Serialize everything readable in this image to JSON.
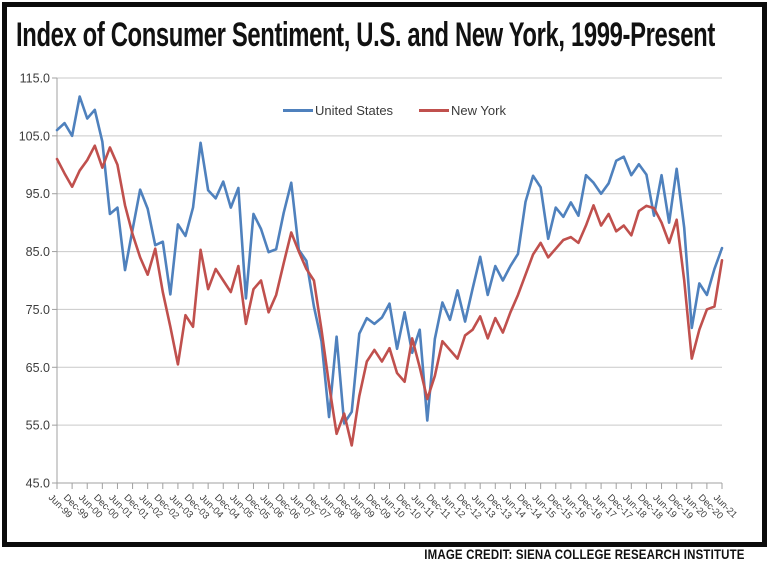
{
  "frame": {
    "title": "Index of Consumer Sentiment, U.S. and New York, 1999-Present",
    "credit": "IMAGE CREDIT: SIENA COLLEGE RESEARCH INSTITUTE"
  },
  "chart_data": {
    "type": "line",
    "title": "Index of Consumer Sentiment, U.S. and New York, 1999-Present",
    "xlabel": "",
    "ylabel": "",
    "ylim": [
      45,
      115
    ],
    "grid": "horizontal",
    "legend_position": "top-center",
    "y_tick_labels": [
      "115.0",
      "105.0",
      "95.0",
      "85.0",
      "75.0",
      "65.0",
      "55.0",
      "45.0"
    ],
    "x_tick_labels": [
      "Jun-99",
      "Dec-99",
      "Jun-00",
      "Dec-00",
      "Jun-01",
      "Dec-01",
      "Jun-02",
      "Dec-02",
      "Jun-03",
      "Dec-03",
      "Jun-04",
      "Dec-04",
      "Jun-05",
      "Dec-05",
      "Jun-06",
      "Dec-06",
      "Jun-07",
      "Dec-07",
      "Jun-08",
      "Dec-08",
      "Jun-09",
      "Dec-09",
      "Jun-10",
      "Dec-10",
      "Jun-11",
      "Dec-11",
      "Jun-12",
      "Dec-12",
      "Jun-13",
      "Dec-13",
      "Jun-14",
      "Dec-14",
      "Jun-15",
      "Dec-15",
      "Jun-16",
      "Dec-16",
      "Jun-17",
      "Dec-17",
      "Jun-18",
      "Dec-18",
      "Jun-19",
      "Dec-19",
      "Jun-20",
      "Dec-20",
      "Jun-21"
    ],
    "categories": [
      "Jun-99",
      "Sep-99",
      "Dec-99",
      "Mar-00",
      "Jun-00",
      "Sep-00",
      "Dec-00",
      "Mar-01",
      "Jun-01",
      "Sep-01",
      "Dec-01",
      "Mar-02",
      "Jun-02",
      "Sep-02",
      "Dec-02",
      "Mar-03",
      "Jun-03",
      "Sep-03",
      "Dec-03",
      "Mar-04",
      "Jun-04",
      "Sep-04",
      "Dec-04",
      "Mar-05",
      "Jun-05",
      "Sep-05",
      "Dec-05",
      "Mar-06",
      "Jun-06",
      "Sep-06",
      "Dec-06",
      "Mar-07",
      "Jun-07",
      "Sep-07",
      "Dec-07",
      "Mar-08",
      "Jun-08",
      "Sep-08",
      "Dec-08",
      "Mar-09",
      "Jun-09",
      "Sep-09",
      "Dec-09",
      "Mar-10",
      "Jun-10",
      "Sep-10",
      "Dec-10",
      "Mar-11",
      "Jun-11",
      "Sep-11",
      "Dec-11",
      "Mar-12",
      "Jun-12",
      "Sep-12",
      "Dec-12",
      "Mar-13",
      "Jun-13",
      "Sep-13",
      "Dec-13",
      "Mar-14",
      "Jun-14",
      "Sep-14",
      "Dec-14",
      "Mar-15",
      "Jun-15",
      "Sep-15",
      "Dec-15",
      "Mar-16",
      "Jun-16",
      "Sep-16",
      "Dec-16",
      "Mar-17",
      "Jun-17",
      "Sep-17",
      "Dec-17",
      "Mar-18",
      "Jun-18",
      "Sep-18",
      "Dec-18",
      "Mar-19",
      "Jun-19",
      "Sep-19",
      "Dec-19",
      "Mar-20",
      "Jun-20",
      "Sep-20",
      "Dec-20",
      "Mar-21",
      "Jun-21"
    ],
    "series": [
      {
        "name": "United States",
        "color": "#4f81bd",
        "values": [
          106.0,
          107.2,
          105.0,
          111.8,
          108.0,
          109.5,
          104.0,
          91.5,
          92.6,
          81.8,
          88.8,
          95.7,
          92.4,
          86.1,
          86.7,
          77.6,
          89.7,
          87.7,
          92.6,
          103.8,
          95.6,
          94.2,
          97.1,
          92.6,
          96.0,
          76.9,
          91.5,
          88.9,
          84.9,
          85.4,
          91.7,
          96.9,
          85.3,
          83.4,
          75.5,
          69.5,
          56.4,
          70.3,
          55.3,
          57.3,
          70.8,
          73.5,
          72.5,
          73.6,
          76.0,
          68.2,
          74.5,
          67.5,
          71.5,
          55.8,
          69.9,
          76.2,
          73.2,
          78.3,
          72.9,
          78.6,
          84.1,
          77.5,
          82.5,
          80.0,
          82.5,
          84.6,
          93.6,
          98.1,
          96.1,
          87.2,
          92.6,
          91.0,
          93.5,
          91.2,
          98.2,
          96.9,
          95.0,
          96.8,
          100.7,
          101.4,
          98.2,
          100.1,
          98.3,
          91.2,
          98.2,
          90.0,
          99.3,
          89.1,
          71.8,
          79.5,
          77.5,
          82.0,
          85.6
        ]
      },
      {
        "name": "New York",
        "color": "#c0504d",
        "values": [
          101.0,
          98.5,
          96.2,
          99.0,
          100.8,
          103.3,
          99.5,
          103.0,
          100.0,
          93.0,
          88.0,
          84.0,
          81.0,
          85.5,
          78.0,
          72.0,
          65.5,
          74.0,
          72.0,
          85.3,
          78.5,
          82.0,
          80.0,
          78.0,
          82.5,
          72.5,
          78.5,
          80.0,
          74.5,
          77.5,
          83.0,
          88.3,
          85.0,
          82.0,
          80.0,
          71.5,
          62.0,
          53.5,
          57.0,
          51.5,
          60.0,
          66.0,
          68.0,
          66.0,
          68.3,
          64.0,
          62.5,
          70.0,
          65.0,
          59.5,
          63.5,
          69.5,
          68.0,
          66.5,
          70.5,
          71.5,
          73.8,
          70.0,
          73.5,
          71.0,
          74.5,
          77.5,
          81.0,
          84.5,
          86.5,
          84.0,
          85.5,
          87.0,
          87.5,
          86.5,
          89.5,
          93.0,
          89.5,
          91.5,
          88.5,
          89.5,
          87.8,
          92.0,
          92.9,
          92.5,
          90.0,
          86.5,
          90.5,
          80.0,
          66.5,
          71.5,
          75.0,
          75.5,
          83.5
        ]
      }
    ],
    "colors": {
      "gridline": "#c9c9c9",
      "axis": "#a0a0a0",
      "tick_text": "#3d3d3d"
    }
  }
}
